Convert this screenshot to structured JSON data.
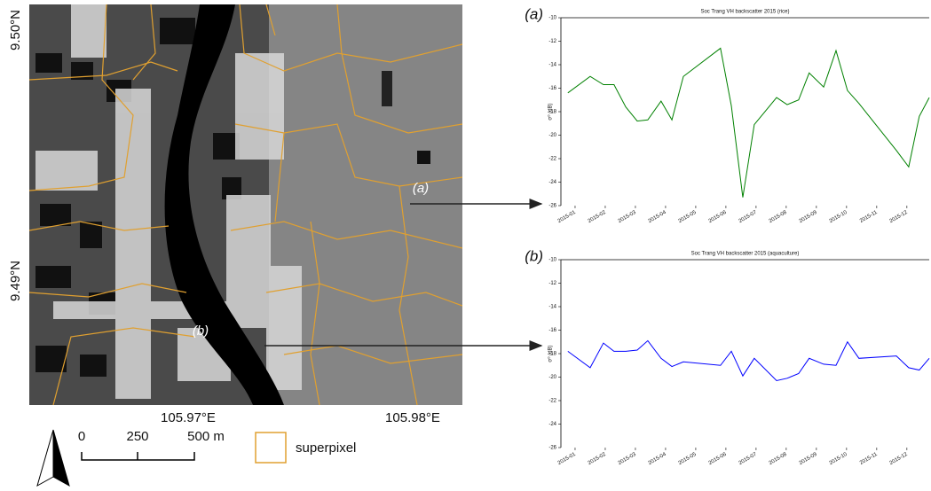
{
  "map": {
    "lat_labels": [
      "9.50°N",
      "9.49°N"
    ],
    "lon_labels": [
      "105.97°E",
      "105.98°E"
    ],
    "point_labels": [
      "(a)",
      "(b)"
    ],
    "scale_labels": [
      "0",
      "250",
      "500 m"
    ],
    "legend_label": "superpixel"
  },
  "chart_data": [
    {
      "type": "line",
      "label": "(a)",
      "title": "Soc Trang VH backscatter 2015 (rice)",
      "ylabel": "σ⁰ (dB)",
      "color": "#008000",
      "x": [
        0.76,
        1.5,
        1.94,
        2.29,
        2.68,
        3.06,
        3.41,
        3.85,
        4.21,
        4.59,
        5.82,
        6.18,
        6.56,
        6.94,
        7.68,
        8.03,
        8.41,
        8.76,
        9.24,
        9.65,
        10.03,
        10.41,
        11.65,
        12.06,
        12.41,
        12.74
      ],
      "values": [
        -16.4,
        -15.0,
        -15.7,
        -15.7,
        -17.6,
        -18.8,
        -18.7,
        -17.1,
        -18.7,
        -15.0,
        -12.6,
        -17.5,
        -25.3,
        -19.1,
        -16.8,
        -17.4,
        -17.0,
        -14.7,
        -15.9,
        -12.8,
        -16.2,
        -17.3,
        -21.3,
        -22.7,
        -18.4,
        -16.8
      ],
      "xlim": [
        0.53,
        12.74
      ],
      "ylim": [
        -26,
        -10
      ],
      "xticks": [
        {
          "value": 1,
          "label": "2015-01"
        },
        {
          "value": 2,
          "label": "2015-02"
        },
        {
          "value": 3,
          "label": "2015-03"
        },
        {
          "value": 4,
          "label": "2015-04"
        },
        {
          "value": 5,
          "label": "2015-05"
        },
        {
          "value": 6,
          "label": "2015-06"
        },
        {
          "value": 7,
          "label": "2015-07"
        },
        {
          "value": 8,
          "label": "2015-08"
        },
        {
          "value": 9,
          "label": "2015-09"
        },
        {
          "value": 10,
          "label": "2015-10"
        },
        {
          "value": 11,
          "label": "2015-11"
        },
        {
          "value": 12,
          "label": "2015-12"
        }
      ],
      "yticks": [
        -26,
        -24,
        -22,
        -20,
        -18,
        -16,
        -14,
        -12,
        -10
      ]
    },
    {
      "type": "line",
      "label": "(b)",
      "title": "Soc Trang VH backscatter 2015 (aquaculture)",
      "ylabel": "σ⁰ (dB)",
      "color": "#0000ff",
      "x": [
        0.76,
        1.5,
        1.94,
        2.29,
        2.68,
        3.06,
        3.41,
        3.85,
        4.21,
        4.59,
        5.82,
        6.18,
        6.56,
        6.94,
        7.68,
        8.03,
        8.41,
        8.76,
        9.24,
        9.65,
        10.03,
        10.41,
        11.65,
        12.06,
        12.41,
        12.74
      ],
      "values": [
        -17.8,
        -19.2,
        -17.1,
        -17.8,
        -17.8,
        -17.7,
        -16.9,
        -18.4,
        -19.1,
        -18.7,
        -19.0,
        -17.8,
        -19.9,
        -18.4,
        -20.3,
        -20.1,
        -19.7,
        -18.4,
        -18.9,
        -19.0,
        -17.0,
        -18.4,
        -18.2,
        -19.2,
        -19.4,
        -18.4
      ],
      "xlim": [
        0.53,
        12.74
      ],
      "ylim": [
        -26,
        -10
      ],
      "xticks": [
        {
          "value": 1,
          "label": "2015-01"
        },
        {
          "value": 2,
          "label": "2015-02"
        },
        {
          "value": 3,
          "label": "2015-03"
        },
        {
          "value": 4,
          "label": "2015-04"
        },
        {
          "value": 5,
          "label": "2015-05"
        },
        {
          "value": 6,
          "label": "2015-06"
        },
        {
          "value": 7,
          "label": "2015-07"
        },
        {
          "value": 8,
          "label": "2015-08"
        },
        {
          "value": 9,
          "label": "2015-09"
        },
        {
          "value": 10,
          "label": "2015-10"
        },
        {
          "value": 11,
          "label": "2015-11"
        },
        {
          "value": 12,
          "label": "2015-12"
        }
      ],
      "yticks": [
        -26,
        -24,
        -22,
        -20,
        -18,
        -16,
        -14,
        -12,
        -10
      ]
    }
  ]
}
